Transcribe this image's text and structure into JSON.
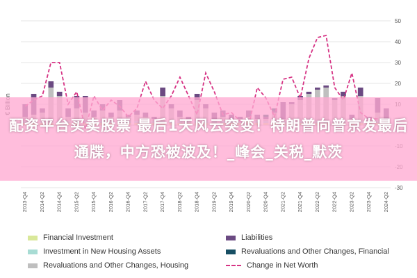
{
  "chart_data": {
    "type": "bar",
    "ylabel": "€ Billion",
    "ylim": [
      -30,
      50
    ],
    "yticks": [
      -30,
      -20,
      -10,
      0,
      10,
      20,
      30,
      40,
      50
    ],
    "grid": "horizontal",
    "legend_position": "bottom",
    "categories": [
      "2013-Q4",
      "2014-Q1",
      "2014-Q2",
      "2014-Q3",
      "2014-Q4",
      "2015-Q1",
      "2015-Q2",
      "2015-Q3",
      "2015-Q4",
      "2016-Q1",
      "2016-Q2",
      "2016-Q3",
      "2016-Q4",
      "2017-Q1",
      "2017-Q2",
      "2017-Q3",
      "2017-Q4",
      "2018-Q1",
      "2018-Q2",
      "2018-Q3",
      "2018-Q4",
      "2019-Q1",
      "2019-Q2",
      "2019-Q3",
      "2019-Q4",
      "2020-Q1",
      "2020-Q2",
      "2020-Q3",
      "2020-Q4",
      "2021-Q1",
      "2021-Q2",
      "2021-Q3",
      "2021-Q4",
      "2022-Q1",
      "2022-Q2",
      "2022-Q3",
      "2022-Q4",
      "2023-Q1",
      "2023-Q2",
      "2023-Q3",
      "2023-Q4",
      "2024-Q1",
      "2024-Q2"
    ],
    "visible_tick_labels": [
      "2013-Q4",
      "2014-Q2",
      "2014-Q4",
      "2015-Q2",
      "2015-Q4",
      "2016-Q2",
      "2016-Q4",
      "2017-Q2",
      "2017-Q4",
      "2018-Q2",
      "2018-Q4",
      "2019-Q2",
      "2019-Q4",
      "2020-Q2",
      "2020-Q4",
      "2021-Q2",
      "2021-Q4",
      "2022-Q2",
      "2022-Q4",
      "2023-Q2",
      "2023-Q4",
      "2024-Q2"
    ],
    "series": [
      {
        "name": "Financial Investment",
        "kind": "bar",
        "color": "#d9e89a",
        "values": [
          1,
          1,
          1,
          1,
          1,
          1,
          1,
          1,
          1,
          1,
          1,
          1,
          1,
          1,
          1,
          1,
          1,
          1,
          1,
          1,
          1,
          1,
          1,
          1,
          1,
          1,
          2,
          1,
          1,
          1,
          1,
          1,
          1,
          2,
          1,
          1,
          1,
          1,
          1,
          1,
          1,
          1,
          1
        ]
      },
      {
        "name": "Investment in New Housing Assets",
        "kind": "bar",
        "color": "#a8dcd4",
        "values": [
          1,
          1,
          1,
          1,
          1,
          1,
          1,
          1,
          1,
          1,
          1,
          1,
          1,
          1,
          1,
          1,
          1,
          1,
          1,
          1,
          1,
          1,
          1,
          1,
          1,
          1,
          1,
          1,
          1,
          1,
          1,
          1,
          1,
          1,
          1,
          1,
          1,
          1,
          1,
          1,
          1,
          1,
          1
        ]
      },
      {
        "name": "Revaluations and Other Changes, Housing",
        "kind": "bar",
        "color": "#bfbfbf",
        "values": [
          2,
          3,
          4,
          16,
          12,
          2,
          6,
          4,
          2,
          5,
          2,
          5,
          2,
          3,
          2,
          1,
          12,
          6,
          2,
          1,
          10,
          6,
          1,
          2,
          1,
          1,
          1,
          1,
          1,
          4,
          1,
          8,
          10,
          12,
          15,
          16,
          10,
          12,
          1,
          12,
          1,
          4,
          1
        ]
      },
      {
        "name": "Liabilities",
        "kind": "bar",
        "color": "#6b4a82",
        "values": [
          6,
          10,
          2,
          3,
          2,
          4,
          6,
          8,
          3,
          3,
          2,
          5,
          1,
          2,
          2,
          1,
          4,
          2,
          3,
          1,
          3,
          2,
          3,
          3,
          2,
          1,
          3,
          2,
          1,
          1,
          8,
          1,
          2,
          1,
          1,
          1,
          1,
          2,
          2,
          4,
          1,
          7,
          5
        ]
      },
      {
        "name": "Revaluations and Other Changes, Financial",
        "kind": "bar",
        "color": "#174e63",
        "values": [
          0,
          0,
          0,
          0,
          0,
          0,
          0,
          0,
          0,
          0,
          0,
          0,
          0,
          0,
          0,
          0,
          0,
          0,
          0,
          0,
          0,
          0,
          0,
          0,
          0,
          0,
          0,
          0,
          1,
          1,
          0,
          0,
          0,
          0,
          0,
          0,
          0,
          0,
          0,
          0,
          0,
          0,
          0
        ]
      },
      {
        "name": "Change in Net Worth",
        "kind": "line",
        "color": "#d63384",
        "values": [
          9,
          12,
          14,
          30,
          30,
          10,
          16,
          -2,
          14,
          7,
          12,
          9,
          4,
          8,
          21,
          12,
          8,
          14,
          23,
          14,
          5,
          25,
          16,
          5,
          6,
          2,
          0,
          18,
          13,
          4,
          22,
          23,
          13,
          32,
          42,
          43,
          18,
          12,
          25,
          6,
          3,
          3,
          1
        ]
      }
    ]
  },
  "overlay": {
    "banner_text": "配资平台买卖股票 最后1天风云突变！特朗普向普京发最后通牒，中方恐被波及！_峰会_关税_默茨"
  },
  "legend": {
    "items": [
      {
        "label": "Financial Investment",
        "color": "#d9e89a",
        "kind": "bar"
      },
      {
        "label": "Liabilities",
        "color": "#6b4a82",
        "kind": "bar"
      },
      {
        "label": "Investment in New Housing Assets",
        "color": "#a8dcd4",
        "kind": "bar"
      },
      {
        "label": "Revaluations and Other Changes, Financial",
        "color": "#174e63",
        "kind": "bar"
      },
      {
        "label": "Revaluations and Other Changes, Housing",
        "color": "#bfbfbf",
        "kind": "bar"
      },
      {
        "label": "Change in Net Worth",
        "color": "#d63384",
        "kind": "line"
      }
    ]
  }
}
